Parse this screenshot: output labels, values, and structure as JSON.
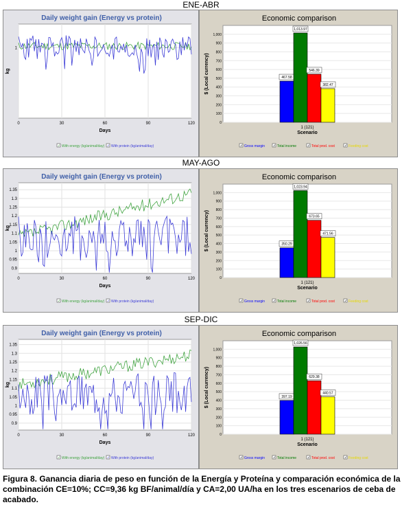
{
  "caption": "Figura 8. Ganancia diaria de peso en función de la Energía y Proteína y comparación económica de la combinación CE=10%; CC=9,36 kg BF/animal/día y CA=2,00 UA/ha en los tres escenarios de ceba de acabado.",
  "colors": {
    "energy": "#3fa33f",
    "protein": "#3a3ad6",
    "gross_margin": "#0000ff",
    "total_income": "#007a00",
    "total_prod_cost": "#ff0000",
    "feeding_cost": "#ffff00"
  },
  "chart_data": [
    {
      "scenario": "ENE-ABR",
      "line": {
        "type": "line",
        "title": "Daily weight gain (Energy vs protein)",
        "xlabel": "Days",
        "ylabel": "kg",
        "xlim": [
          0,
          120
        ],
        "ylim": [
          0.55,
          1.15
        ],
        "xticks": [
          0,
          30,
          60,
          90,
          120
        ],
        "yticks": [
          {
            "v": 1,
            "label": "1"
          }
        ],
        "series": [
          {
            "name": "With energy (kg/animal/day)",
            "color": "#3fa33f",
            "base": 1.01,
            "amp": 0.025,
            "seed": 11
          },
          {
            "name": "With protein (kg/animal/day)",
            "color": "#3a3ad6",
            "base": 1.0,
            "amp": 0.08,
            "seed": 23
          }
        ]
      },
      "bar": {
        "type": "bar",
        "title": "Economic comparison",
        "xlabel": "Scenario",
        "ylabel": "$ (Local currency)",
        "category": "1 (121)",
        "ylim": [
          0,
          1100
        ],
        "yticks": [
          {
            "v": 0,
            "label": "0"
          },
          {
            "v": 100,
            "label": "100"
          },
          {
            "v": 200,
            "label": "200"
          },
          {
            "v": 300,
            "label": "300"
          },
          {
            "v": 400,
            "label": "400"
          },
          {
            "v": 500,
            "label": "500"
          },
          {
            "v": 600,
            "label": "600"
          },
          {
            "v": 700,
            "label": "700"
          },
          {
            "v": 800,
            "label": "800"
          },
          {
            "v": 900,
            "label": "900"
          },
          {
            "v": 1000,
            "label": "1,000"
          }
        ],
        "series": [
          {
            "name": "Gross margin",
            "value": 467.58,
            "label": "467.58",
            "color": "#0000ff"
          },
          {
            "name": "Total income",
            "value": 1013.97,
            "label": "1,013.97",
            "color": "#007a00"
          },
          {
            "name": "Total prod. cost",
            "value": 546.39,
            "label": "546.39",
            "color": "#ff0000"
          },
          {
            "name": "Feeding cost",
            "value": 382.47,
            "label": "382.47",
            "color": "#ffff00"
          }
        ]
      }
    },
    {
      "scenario": "MAY-AGO",
      "line": {
        "type": "line",
        "title": "Daily weight gain (Energy vs protein)",
        "xlabel": "Days",
        "ylabel": "kg",
        "xlim": [
          0,
          120
        ],
        "ylim": [
          0.87,
          1.39
        ],
        "xticks": [
          0,
          30,
          60,
          90,
          120
        ],
        "yticks": [
          {
            "v": 0.9,
            "label": "0.9"
          },
          {
            "v": 0.95,
            "label": "0.95"
          },
          {
            "v": 1.0,
            "label": "1"
          },
          {
            "v": 1.05,
            "label": "1.05"
          },
          {
            "v": 1.1,
            "label": "1.1"
          },
          {
            "v": 1.15,
            "label": "1.15"
          },
          {
            "v": 1.2,
            "label": "1.2"
          },
          {
            "v": 1.25,
            "label": "1.25"
          },
          {
            "v": 1.3,
            "label": "1.3"
          },
          {
            "v": 1.35,
            "label": "1.35"
          }
        ],
        "series": [
          {
            "name": "With energy (kg/animal/day)",
            "color": "#3fa33f",
            "start": 1.08,
            "end": 1.33,
            "amp": 0.035,
            "seed": 37
          },
          {
            "name": "With protein (kg/animal/day)",
            "color": "#3a3ad6",
            "base": 1.07,
            "amp": 0.13,
            "seed": 41
          }
        ]
      },
      "bar": {
        "type": "bar",
        "title": "Economic comparison",
        "xlabel": "Scenario",
        "ylabel": "$ (Local currency)",
        "category": "1 (121)",
        "ylim": [
          0,
          1100
        ],
        "yticks": [
          {
            "v": 0,
            "label": "0"
          },
          {
            "v": 100,
            "label": "100"
          },
          {
            "v": 200,
            "label": "200"
          },
          {
            "v": 300,
            "label": "300"
          },
          {
            "v": 400,
            "label": "400"
          },
          {
            "v": 500,
            "label": "500"
          },
          {
            "v": 600,
            "label": "600"
          },
          {
            "v": 700,
            "label": "700"
          },
          {
            "v": 800,
            "label": "800"
          },
          {
            "v": 900,
            "label": "900"
          },
          {
            "v": 1000,
            "label": "1,000"
          }
        ],
        "series": [
          {
            "name": "Gross margin",
            "value": 350.29,
            "label": "350.29",
            "color": "#0000ff"
          },
          {
            "name": "Total income",
            "value": 1023.94,
            "label": "1,023.94",
            "color": "#007a00"
          },
          {
            "name": "Total prod. cost",
            "value": 673.65,
            "label": "673.65",
            "color": "#ff0000"
          },
          {
            "name": "Feeding cost",
            "value": 471.56,
            "label": "471.56",
            "color": "#ffff00"
          }
        ]
      }
    },
    {
      "scenario": "SEP-DIC",
      "line": {
        "type": "line",
        "title": "Daily weight gain (Energy vs protein)",
        "xlabel": "Days",
        "ylabel": "kg",
        "xlim": [
          0,
          120
        ],
        "ylim": [
          0.86,
          1.38
        ],
        "xticks": [
          0,
          30,
          60,
          90,
          120
        ],
        "yticks": [
          {
            "v": 0.9,
            "label": "0.9"
          },
          {
            "v": 0.95,
            "label": "0.95"
          },
          {
            "v": 1.0,
            "label": "1"
          },
          {
            "v": 1.05,
            "label": "1.05"
          },
          {
            "v": 1.1,
            "label": "1.1"
          },
          {
            "v": 1.15,
            "label": "1.15"
          },
          {
            "v": 1.2,
            "label": "1.2"
          },
          {
            "v": 1.25,
            "label": "1.25"
          },
          {
            "v": 1.3,
            "label": "1.3"
          },
          {
            "v": 1.35,
            "label": "1.35"
          }
        ],
        "series": [
          {
            "name": "With energy (kg/animal/day)",
            "color": "#3fa33f",
            "start": 1.12,
            "end": 1.29,
            "amp": 0.035,
            "seed": 53
          },
          {
            "name": "With protein (kg/animal/day)",
            "color": "#3a3ad6",
            "base": 1.07,
            "amp": 0.12,
            "seed": 67
          }
        ]
      },
      "bar": {
        "type": "bar",
        "title": "Economic comparison",
        "xlabel": "Scenario",
        "ylabel": "$ (Local currency)",
        "category": "1 (121)",
        "ylim": [
          0,
          1100
        ],
        "yticks": [
          {
            "v": 0,
            "label": "0"
          },
          {
            "v": 100,
            "label": "100"
          },
          {
            "v": 200,
            "label": "200"
          },
          {
            "v": 300,
            "label": "300"
          },
          {
            "v": 400,
            "label": "400"
          },
          {
            "v": 500,
            "label": "500"
          },
          {
            "v": 600,
            "label": "600"
          },
          {
            "v": 700,
            "label": "700"
          },
          {
            "v": 800,
            "label": "800"
          },
          {
            "v": 900,
            "label": "900"
          },
          {
            "v": 1000,
            "label": "1,000"
          }
        ],
        "series": [
          {
            "name": "Gross margin",
            "value": 397.19,
            "label": "397.19",
            "color": "#0000ff"
          },
          {
            "name": "Total income",
            "value": 1026.56,
            "label": "1,026.56",
            "color": "#007a00"
          },
          {
            "name": "Total prod. cost",
            "value": 629.38,
            "label": "629.38",
            "color": "#ff0000"
          },
          {
            "name": "Feeding cost",
            "value": 440.57,
            "label": "440.57",
            "color": "#ffff00"
          }
        ]
      }
    }
  ]
}
